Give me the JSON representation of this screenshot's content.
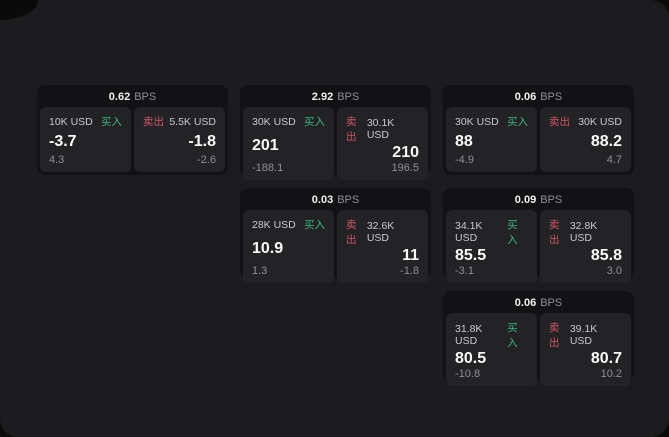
{
  "app": {
    "background_color": "#0a0a0b",
    "panel_color": "#1c1c1e",
    "card_color": "#121214",
    "tile_color": "#232326"
  },
  "colors": {
    "buy_green": "#3db57e",
    "sell_red": "#cf5466",
    "value_white": "#fafafa",
    "muted_gray": "#8f8f93",
    "label_gray": "#c9c9cb"
  },
  "labels": {
    "bps_unit": "BPS",
    "buy": "买入",
    "sell": "卖出"
  },
  "cards": [
    {
      "bps": "0.62",
      "buy": {
        "size": "10K USD",
        "value": "-3.7",
        "change": "4.3"
      },
      "sell": {
        "size": "5.5K USD",
        "value": "-1.8",
        "change": "-2.6"
      }
    },
    {
      "bps": "2.92",
      "buy": {
        "size": "30K USD",
        "value": "201",
        "change": "-188.1"
      },
      "sell": {
        "size": "30.1K USD",
        "value": "210",
        "change": "196.5"
      }
    },
    {
      "bps": "0.06",
      "buy": {
        "size": "30K USD",
        "value": "88",
        "change": "-4.9"
      },
      "sell": {
        "size": "30K USD",
        "value": "88.2",
        "change": "4.7"
      }
    },
    {
      "bps": "0.03",
      "buy": {
        "size": "28K USD",
        "value": "10.9",
        "change": "1.3"
      },
      "sell": {
        "size": "32.6K USD",
        "value": "11",
        "change": "-1.8"
      }
    },
    {
      "bps": "0.09",
      "buy": {
        "size": "34.1K USD",
        "value": "85.5",
        "change": "-3.1"
      },
      "sell": {
        "size": "32.8K USD",
        "value": "85.8",
        "change": "3.0"
      }
    },
    {
      "bps": "0.06",
      "buy": {
        "size": "31.8K USD",
        "value": "80.5",
        "change": "-10.8"
      },
      "sell": {
        "size": "39.1K USD",
        "value": "80.7",
        "change": "10.2"
      }
    }
  ]
}
